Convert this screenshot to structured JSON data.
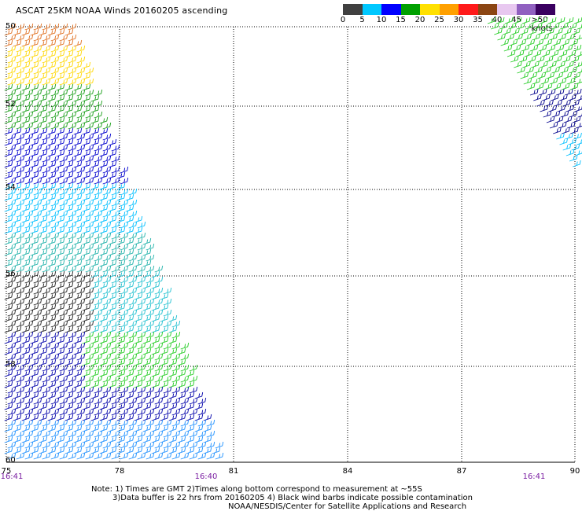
{
  "title": "ASCAT 25KM NOAA Winds 20160205 ascending",
  "colorbar": {
    "colors": [
      "#404040",
      "#8c8c8c",
      "#00bfff",
      "#0070ff",
      "#0000cd",
      "#00a000",
      "#ffe000",
      "#ffa000",
      "#ff7000",
      "#ff1a1a",
      "#b00000",
      "#6b3a1f",
      "#c060c0",
      "#b090d0",
      "#ffffff",
      "#3a0060"
    ],
    "labels": [
      "0",
      "5",
      "10",
      "15",
      "20",
      "25",
      "30",
      "35",
      "40",
      "45",
      ">50 knots"
    ]
  },
  "axes": {
    "y_labels": [
      "50",
      "52",
      "54",
      "56",
      "58",
      "60"
    ],
    "x_labels": [
      "75",
      "78",
      "81",
      "84",
      "87",
      "90"
    ],
    "time_labels": [
      "16:41",
      "16:40",
      "16:41"
    ]
  },
  "notes": {
    "line1": "Note: 1) Times are GMT 2)Times along bottom correspond to measurement at ~55S",
    "line2": "3)Data buffer is 22 hrs from 20160205 4) Black wind barbs indicate possible contamination",
    "line3": "NOAA/NESDIS/Center for Satellite Applications and Research"
  }
}
